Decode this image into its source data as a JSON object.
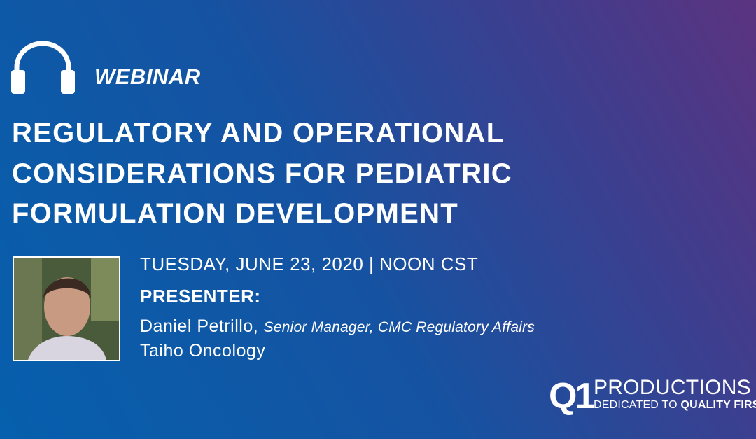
{
  "badge": {
    "label": "WEBINAR"
  },
  "title": {
    "lines": [
      "REGULATORY AND OPERATIONAL",
      "CONSIDERATIONS FOR PEDIATRIC",
      "FORMULATION DEVELOPMENT"
    ]
  },
  "details": {
    "date": "TUESDAY, JUNE 23, 2020 | NOON CST",
    "presenter_heading": "PRESENTER:",
    "presenter_name": "Daniel Petrillo,",
    "presenter_role": "Senior Manager, CMC Regulatory Affairs",
    "presenter_company": "Taiho Oncology"
  },
  "logo": {
    "mark": "Q1",
    "name": "PRODUCTIONS",
    "tagline_start": "DEDICATED TO",
    "tagline_end": "QUALITY FIRST"
  }
}
